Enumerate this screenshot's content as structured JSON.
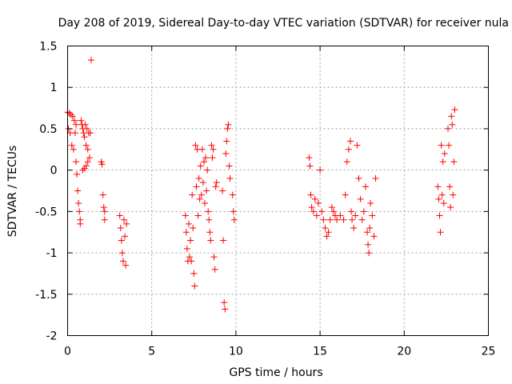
{
  "chart_data": {
    "type": "scatter",
    "title": "Day 208 of 2019, Sidereal Day-to-day VTEC variation (SDTVAR) for receiver nula",
    "xlabel": "GPS time / hours",
    "ylabel": "SDTVAR / TECUs",
    "xlim": [
      0,
      25
    ],
    "ylim": [
      -2,
      1.5
    ],
    "xticks": [
      0,
      5,
      10,
      15,
      20,
      25
    ],
    "xtick_labels": [
      "0",
      "5",
      "10",
      "15",
      "20",
      "25"
    ],
    "yticks": [
      -2,
      -1.5,
      -1,
      -0.5,
      0,
      0.5,
      1,
      1.5
    ],
    "ytick_labels": [
      "-2",
      "-1.5",
      "-1",
      "-0.5",
      "0",
      "0.5",
      "1",
      "1.5"
    ],
    "grid": true,
    "marker": "+",
    "marker_color": "#ff0000",
    "series": [
      {
        "name": "SDTVAR",
        "points": [
          [
            0.0,
            0.7
          ],
          [
            0.05,
            0.5
          ],
          [
            0.1,
            0.69
          ],
          [
            0.15,
            0.45
          ],
          [
            0.2,
            0.67
          ],
          [
            0.25,
            0.3
          ],
          [
            0.3,
            0.65
          ],
          [
            0.35,
            0.25
          ],
          [
            0.4,
            0.6
          ],
          [
            0.45,
            0.45
          ],
          [
            0.5,
            0.55
          ],
          [
            0.5,
            0.1
          ],
          [
            0.55,
            -0.05
          ],
          [
            0.6,
            -0.25
          ],
          [
            0.65,
            -0.4
          ],
          [
            0.7,
            -0.5
          ],
          [
            0.75,
            -0.6
          ],
          [
            0.75,
            -0.65
          ],
          [
            0.8,
            0.6
          ],
          [
            0.85,
            0.55
          ],
          [
            0.9,
            0.5
          ],
          [
            0.9,
            0.0
          ],
          [
            0.95,
            0.45
          ],
          [
            1.0,
            0.02
          ],
          [
            1.0,
            0.4
          ],
          [
            1.05,
            0.55
          ],
          [
            1.1,
            0.05
          ],
          [
            1.1,
            0.3
          ],
          [
            1.15,
            0.5
          ],
          [
            1.2,
            0.1
          ],
          [
            1.2,
            0.25
          ],
          [
            1.25,
            0.45
          ],
          [
            1.3,
            0.15
          ],
          [
            1.35,
            0.45
          ],
          [
            1.4,
            1.33
          ],
          [
            2.0,
            0.1
          ],
          [
            2.05,
            0.07
          ],
          [
            2.1,
            -0.3
          ],
          [
            2.15,
            -0.45
          ],
          [
            2.2,
            -0.5
          ],
          [
            2.2,
            -0.6
          ],
          [
            3.1,
            -0.55
          ],
          [
            3.15,
            -0.7
          ],
          [
            3.2,
            -0.85
          ],
          [
            3.25,
            -1.0
          ],
          [
            3.3,
            -1.1
          ],
          [
            3.35,
            -0.6
          ],
          [
            3.4,
            -0.8
          ],
          [
            3.45,
            -1.15
          ],
          [
            3.5,
            -0.65
          ],
          [
            7.0,
            -0.55
          ],
          [
            7.05,
            -0.75
          ],
          [
            7.1,
            -0.95
          ],
          [
            7.15,
            -1.1
          ],
          [
            7.2,
            -0.65
          ],
          [
            7.25,
            -1.05
          ],
          [
            7.3,
            -0.85
          ],
          [
            7.35,
            -1.1
          ],
          [
            7.4,
            -0.3
          ],
          [
            7.45,
            -0.7
          ],
          [
            7.5,
            -1.25
          ],
          [
            7.55,
            -1.4
          ],
          [
            7.6,
            0.3
          ],
          [
            7.65,
            -0.2
          ],
          [
            7.7,
            0.25
          ],
          [
            7.75,
            -0.55
          ],
          [
            7.8,
            -0.1
          ],
          [
            7.85,
            -0.35
          ],
          [
            7.9,
            0.05
          ],
          [
            7.95,
            -0.3
          ],
          [
            8.0,
            0.25
          ],
          [
            8.05,
            -0.15
          ],
          [
            8.1,
            0.1
          ],
          [
            8.15,
            -0.4
          ],
          [
            8.2,
            0.15
          ],
          [
            8.25,
            -0.25
          ],
          [
            8.3,
            0.0
          ],
          [
            8.35,
            -0.5
          ],
          [
            8.4,
            -0.6
          ],
          [
            8.45,
            -0.75
          ],
          [
            8.5,
            -0.85
          ],
          [
            8.55,
            0.3
          ],
          [
            8.6,
            0.15
          ],
          [
            8.65,
            0.25
          ],
          [
            8.7,
            -1.05
          ],
          [
            8.75,
            -1.2
          ],
          [
            8.8,
            -0.2
          ],
          [
            8.85,
            -0.15
          ],
          [
            9.2,
            -0.25
          ],
          [
            9.25,
            -0.85
          ],
          [
            9.3,
            -1.6
          ],
          [
            9.35,
            -1.68
          ],
          [
            9.4,
            0.2
          ],
          [
            9.45,
            0.35
          ],
          [
            9.5,
            0.5
          ],
          [
            9.55,
            0.55
          ],
          [
            9.6,
            0.05
          ],
          [
            9.65,
            -0.1
          ],
          [
            9.8,
            -0.3
          ],
          [
            9.85,
            -0.5
          ],
          [
            9.9,
            -0.6
          ],
          [
            14.35,
            0.15
          ],
          [
            14.4,
            0.05
          ],
          [
            14.45,
            -0.3
          ],
          [
            14.5,
            -0.45
          ],
          [
            14.6,
            -0.5
          ],
          [
            14.7,
            -0.35
          ],
          [
            14.8,
            -0.55
          ],
          [
            14.9,
            -0.4
          ],
          [
            15.0,
            0.0
          ],
          [
            15.1,
            -0.5
          ],
          [
            15.2,
            -0.6
          ],
          [
            15.3,
            -0.7
          ],
          [
            15.4,
            -0.8
          ],
          [
            15.5,
            -0.75
          ],
          [
            15.6,
            -0.6
          ],
          [
            15.7,
            -0.45
          ],
          [
            15.8,
            -0.5
          ],
          [
            15.9,
            -0.55
          ],
          [
            16.0,
            -0.6
          ],
          [
            16.2,
            -0.55
          ],
          [
            16.4,
            -0.6
          ],
          [
            16.5,
            -0.3
          ],
          [
            16.6,
            0.1
          ],
          [
            16.7,
            0.25
          ],
          [
            16.8,
            0.35
          ],
          [
            16.85,
            -0.5
          ],
          [
            16.9,
            -0.6
          ],
          [
            17.0,
            -0.7
          ],
          [
            17.1,
            -0.55
          ],
          [
            17.2,
            0.3
          ],
          [
            17.3,
            -0.1
          ],
          [
            17.4,
            -0.35
          ],
          [
            17.5,
            -0.6
          ],
          [
            17.6,
            -0.5
          ],
          [
            17.7,
            -0.2
          ],
          [
            17.8,
            -0.75
          ],
          [
            17.85,
            -0.9
          ],
          [
            17.9,
            -1.0
          ],
          [
            17.95,
            -0.7
          ],
          [
            18.0,
            -0.4
          ],
          [
            18.1,
            -0.55
          ],
          [
            18.2,
            -0.8
          ],
          [
            18.3,
            -0.1
          ],
          [
            22.0,
            -0.2
          ],
          [
            22.05,
            -0.35
          ],
          [
            22.1,
            -0.55
          ],
          [
            22.15,
            -0.75
          ],
          [
            22.2,
            0.3
          ],
          [
            22.25,
            -0.3
          ],
          [
            22.3,
            0.1
          ],
          [
            22.35,
            -0.4
          ],
          [
            22.4,
            0.2
          ],
          [
            22.6,
            0.5
          ],
          [
            22.65,
            0.3
          ],
          [
            22.7,
            -0.2
          ],
          [
            22.75,
            -0.45
          ],
          [
            22.8,
            0.65
          ],
          [
            22.85,
            0.55
          ],
          [
            22.9,
            -0.3
          ],
          [
            22.95,
            0.1
          ],
          [
            23.0,
            0.73
          ]
        ]
      }
    ]
  }
}
